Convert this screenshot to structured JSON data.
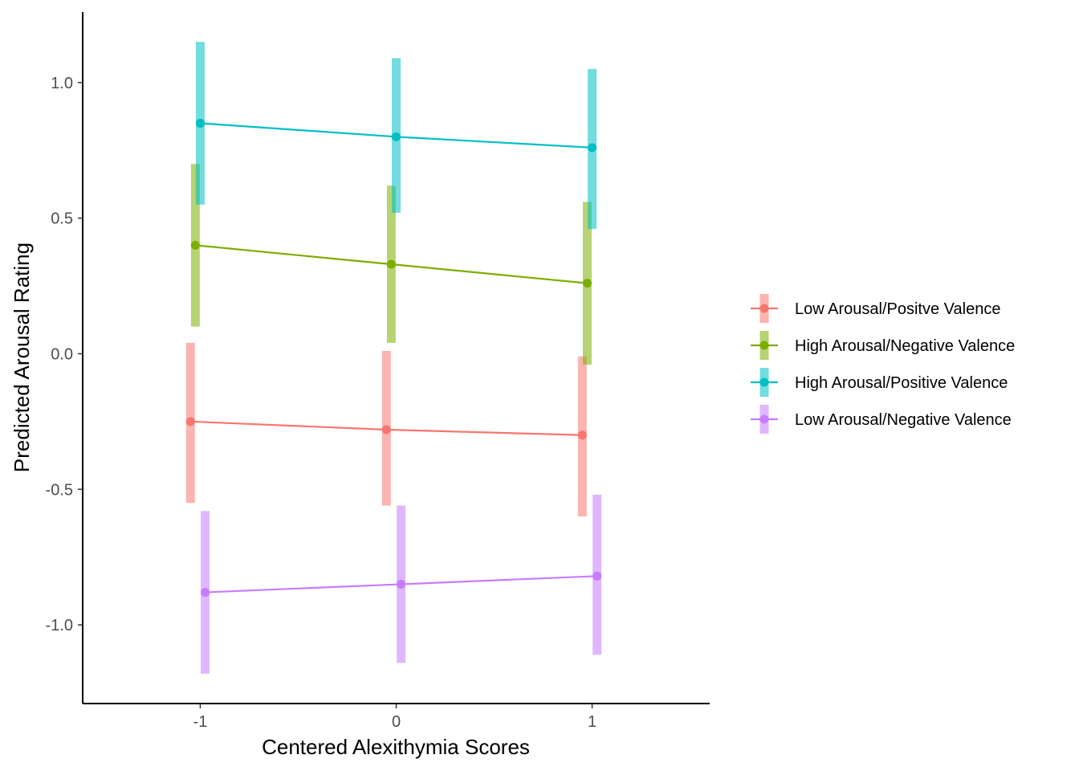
{
  "chart_data": {
    "type": "line",
    "title": "",
    "xlabel": "Centered Alexithymia Scores",
    "ylabel": "Predicted Arousal Rating",
    "xlim": [
      -1.6,
      1.6
    ],
    "ylim": [
      -1.29,
      1.26
    ],
    "x_ticks": [
      -1,
      0,
      1
    ],
    "x_tick_labels": [
      "-1",
      "0",
      "1"
    ],
    "y_ticks": [
      -1.0,
      -0.5,
      0.0,
      0.5,
      1.0
    ],
    "y_tick_labels": [
      "-1.0",
      "-0.5",
      "0.0",
      "0.5",
      "1.0"
    ],
    "grid": false,
    "legend_position": "right",
    "x": [
      -1,
      0,
      1
    ],
    "series": [
      {
        "name": "Low Arousal/Positve Valence",
        "color": "#F8766D",
        "dodge": -0.05,
        "values": [
          -0.25,
          -0.28,
          -0.3
        ],
        "lower": [
          -0.55,
          -0.56,
          -0.6
        ],
        "upper": [
          0.04,
          0.01,
          -0.01
        ]
      },
      {
        "name": "High Arousal/Negative Valence",
        "color": "#7CAE00",
        "dodge": -0.025,
        "values": [
          0.4,
          0.33,
          0.26
        ],
        "lower": [
          0.1,
          0.04,
          -0.04
        ],
        "upper": [
          0.7,
          0.62,
          0.56
        ]
      },
      {
        "name": "High Arousal/Positive Valence",
        "color": "#00BFC4",
        "dodge": 0.0,
        "values": [
          0.85,
          0.8,
          0.76
        ],
        "lower": [
          0.55,
          0.52,
          0.46
        ],
        "upper": [
          1.15,
          1.09,
          1.05
        ]
      },
      {
        "name": "Low Arousal/Negative Valence",
        "color": "#C77CFF",
        "dodge": 0.025,
        "values": [
          -0.88,
          -0.85,
          -0.82
        ],
        "lower": [
          -1.18,
          -1.14,
          -1.11
        ],
        "upper": [
          -0.58,
          -0.56,
          -0.52
        ]
      }
    ]
  }
}
